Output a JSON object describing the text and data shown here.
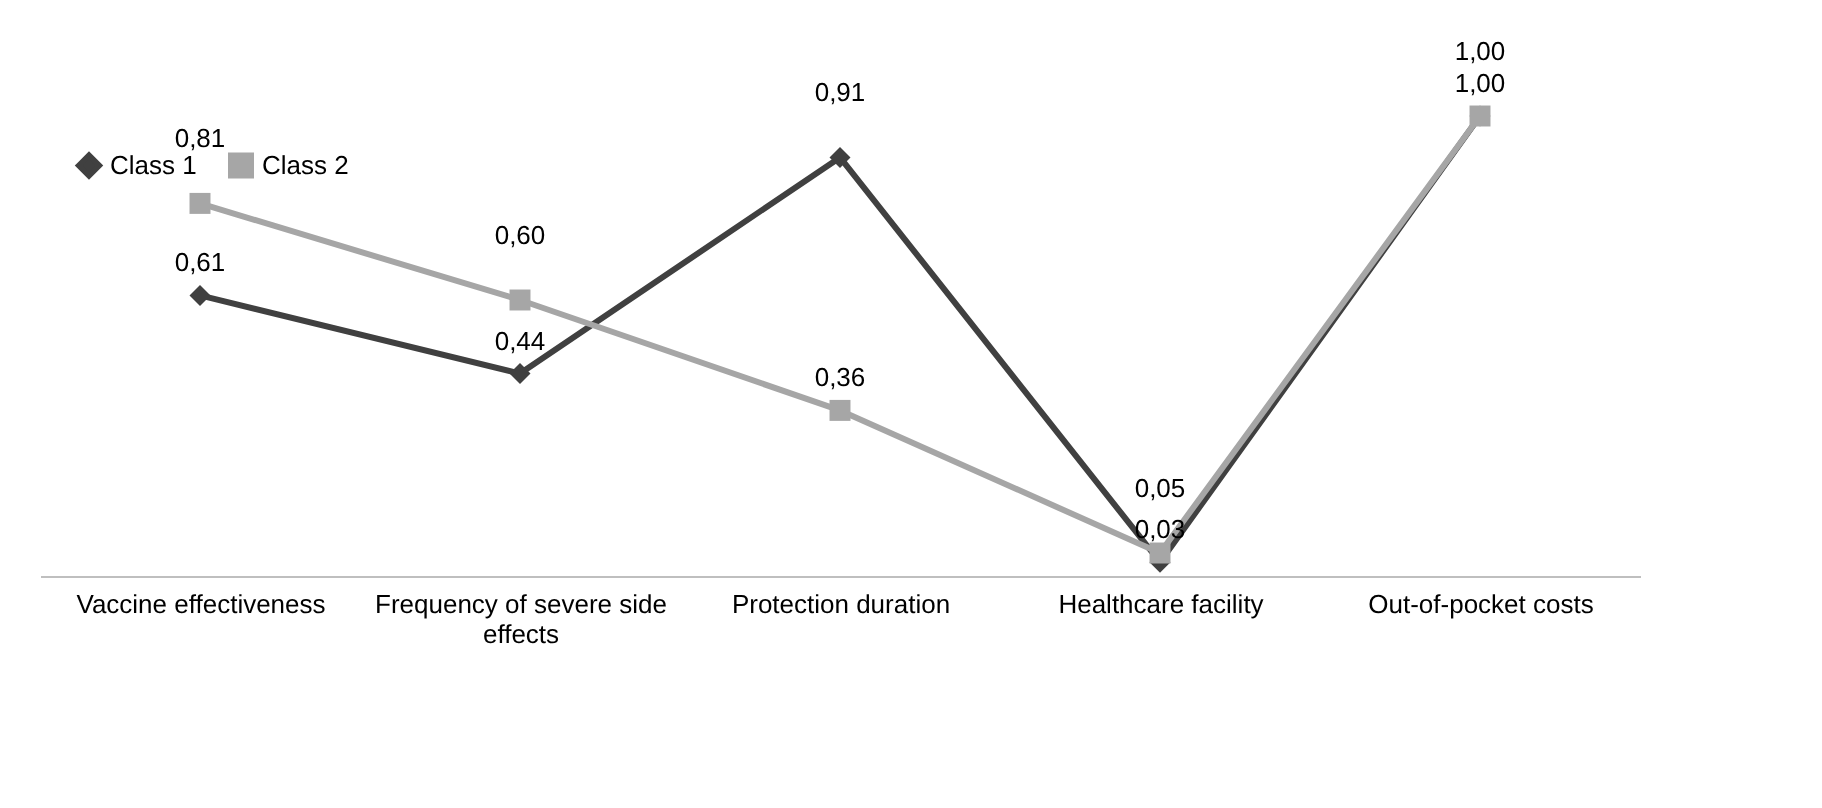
{
  "chart_data": {
    "type": "line",
    "categories": [
      "Vaccine effectiveness",
      "Frequency of severe side effects",
      "Protection duration",
      "Healthcare facility",
      "Out-of-pocket costs"
    ],
    "series": [
      {
        "name": "Class 1",
        "color": "#404040",
        "marker": "diamond",
        "values": [
          0.61,
          0.44,
          0.91,
          0.03,
          1.0
        ],
        "value_labels": [
          "0,61",
          "0,44",
          "0,91",
          "0,03",
          "1,00"
        ]
      },
      {
        "name": "Class 2",
        "color": "#a6a6a6",
        "marker": "square",
        "values": [
          0.81,
          0.6,
          0.36,
          0.05,
          1.0
        ],
        "value_labels": [
          "0,81",
          "0,60",
          "0,36",
          "0,05",
          "1,00"
        ]
      }
    ],
    "legend": "top left",
    "grid": false,
    "line_style": "solid"
  }
}
